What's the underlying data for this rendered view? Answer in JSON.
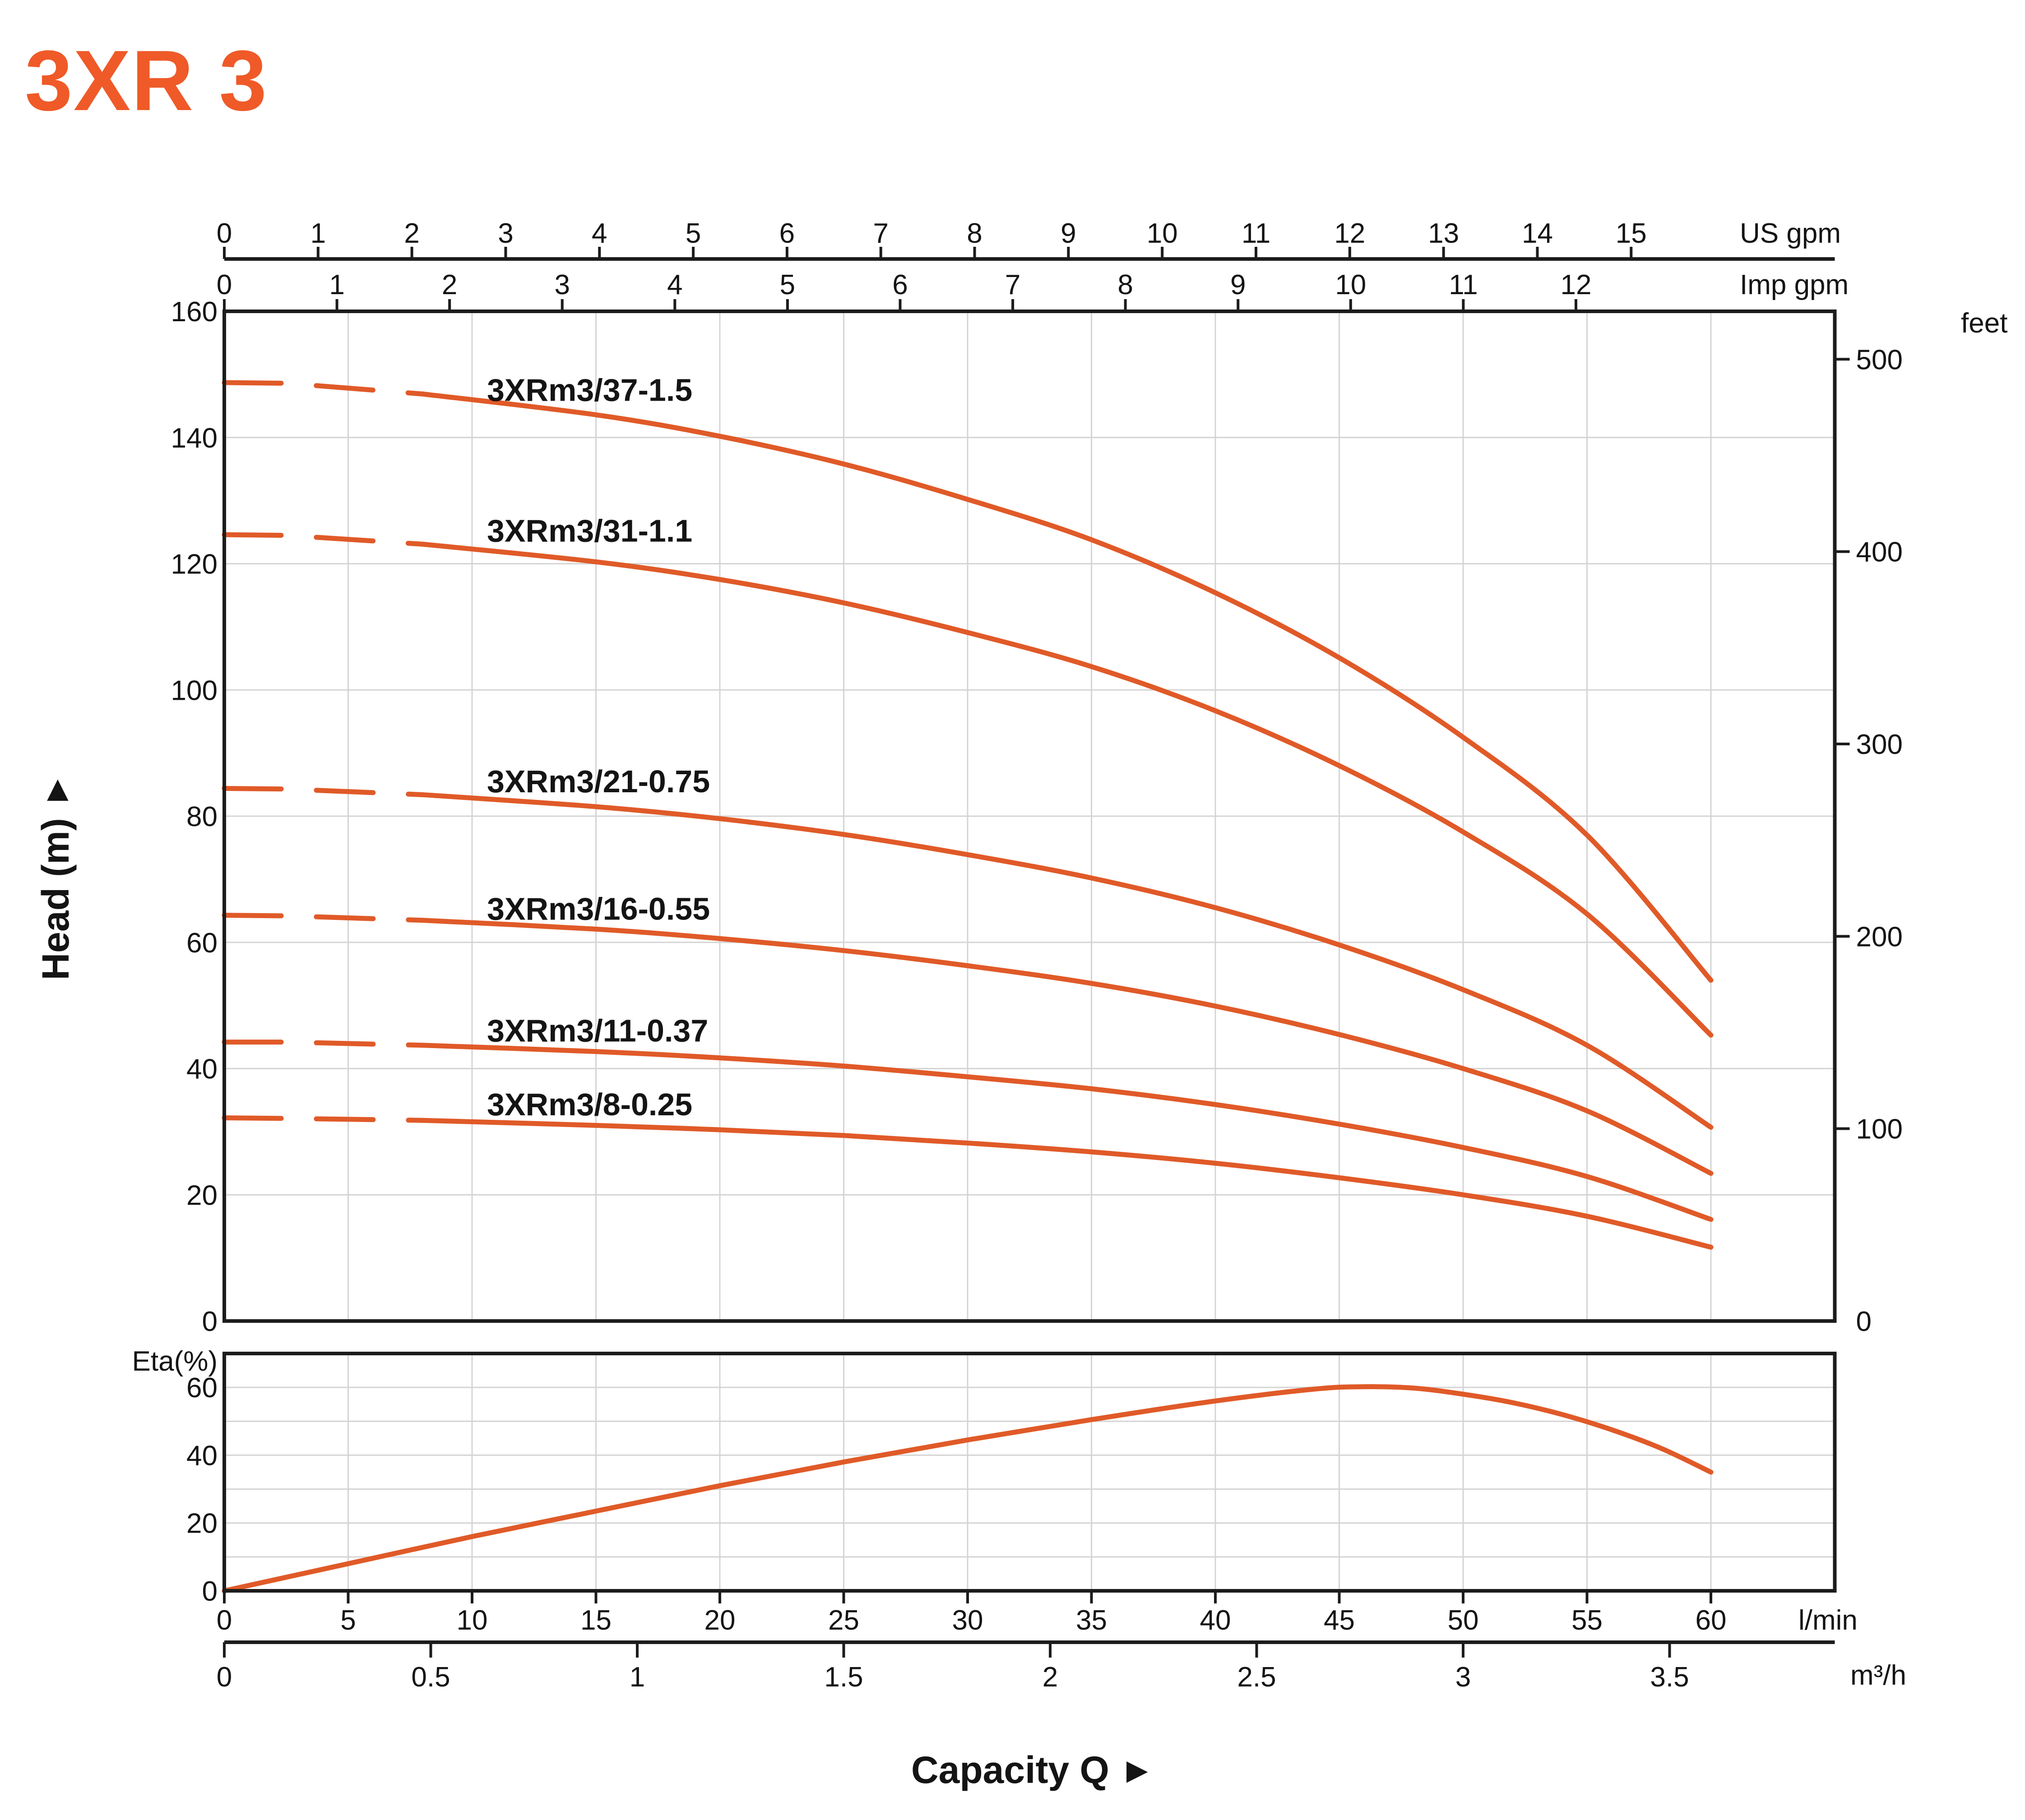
{
  "page": {
    "title": "3XR 3"
  },
  "colors": {
    "title_orange": "#ef5a28",
    "curve_orange": "#e05a28",
    "grid_gray": "#d4d4d4",
    "axis_black": "#1c1c1c",
    "text_black": "#141414"
  },
  "chart_data": {
    "type": "line",
    "title": "3XR 3",
    "xlabel": "Capacity Q",
    "arrow_glyph": "▶",
    "x_unit_rows": [
      {
        "id": "us_gpm",
        "label": "US gpm",
        "lmin_per_unit": 3.7854,
        "ticks": [
          0,
          1,
          2,
          3,
          4,
          5,
          6,
          7,
          8,
          9,
          10,
          11,
          12,
          13,
          14,
          15
        ]
      },
      {
        "id": "imp_gpm",
        "label": "Imp gpm",
        "lmin_per_unit": 4.5461,
        "ticks": [
          0,
          1,
          2,
          3,
          4,
          5,
          6,
          7,
          8,
          9,
          10,
          11,
          12
        ]
      },
      {
        "id": "lmin",
        "label": "l/min",
        "lmin_per_unit": 1,
        "ticks": [
          0,
          5,
          10,
          15,
          20,
          25,
          30,
          35,
          40,
          45,
          50,
          55,
          60
        ]
      },
      {
        "id": "m3h",
        "label": "m³/h",
        "lmin_per_unit": 16.6667,
        "ticks": [
          0,
          0.5,
          1,
          1.5,
          2,
          2.5,
          3,
          3.5
        ]
      }
    ],
    "head_axis": {
      "label": "Head (m)",
      "range": [
        0,
        160
      ],
      "gridline_step": 20,
      "ticks": [
        0,
        20,
        40,
        60,
        80,
        100,
        120,
        140,
        160
      ]
    },
    "feet_axis": {
      "label": "feet",
      "m_per_foot": 0.3048,
      "ticks": [
        0,
        100,
        200,
        300,
        400,
        500
      ]
    },
    "eta_axis": {
      "label": "Eta(%)",
      "range": [
        0,
        70
      ],
      "gridline_step": 10,
      "ticks": [
        0,
        20,
        40,
        60
      ]
    },
    "x_range_lmin": [
      0,
      65
    ],
    "x_gridline_step_lmin": 5,
    "dashed_below_lmin": 8,
    "q_lmin": [
      0,
      2.5,
      8,
      15,
      20,
      25,
      30,
      35,
      40,
      45,
      50,
      55,
      60
    ],
    "head_series": [
      {
        "name": "3XRm3/37-1.5",
        "label_pos": [
          10.6,
          145.8
        ],
        "heads_m": [
          148.7,
          148.6,
          146.9,
          143.6,
          140.2,
          135.8,
          130.2,
          123.8,
          115.4,
          105.1,
          92.5,
          77.0,
          54.0
        ]
      },
      {
        "name": "3XRm3/31-1.1",
        "label_pos": [
          10.6,
          123.5
        ],
        "heads_m": [
          124.6,
          124.5,
          123.1,
          120.3,
          117.5,
          113.8,
          109.1,
          103.7,
          96.7,
          88.0,
          77.5,
          64.5,
          45.3
        ]
      },
      {
        "name": "3XRm3/21-0.75",
        "label_pos": [
          10.6,
          83.8
        ],
        "heads_m": [
          84.4,
          84.3,
          83.4,
          81.5,
          79.6,
          77.1,
          73.9,
          70.2,
          65.5,
          59.6,
          52.5,
          43.7,
          30.7
        ]
      },
      {
        "name": "3XRm3/16-0.55",
        "label_pos": [
          10.6,
          63.6
        ],
        "heads_m": [
          64.3,
          64.2,
          63.5,
          62.1,
          60.6,
          58.7,
          56.3,
          53.5,
          49.9,
          45.4,
          40.0,
          33.3,
          23.4
        ]
      },
      {
        "name": "3XRm3/11-0.37",
        "label_pos": [
          10.6,
          44.3
        ],
        "heads_m": [
          44.2,
          44.2,
          43.7,
          42.7,
          41.7,
          40.4,
          38.7,
          36.8,
          34.3,
          31.2,
          27.5,
          22.9,
          16.1
        ]
      },
      {
        "name": "3XRm3/8-0.25",
        "label_pos": [
          10.6,
          32.6
        ],
        "heads_m": [
          32.2,
          32.1,
          31.8,
          31.0,
          30.3,
          29.4,
          28.2,
          26.8,
          25.0,
          22.7,
          20.0,
          16.6,
          11.7
        ]
      }
    ],
    "eta_series": {
      "name": "Eta",
      "points": [
        [
          0,
          0
        ],
        [
          5,
          8
        ],
        [
          10,
          16
        ],
        [
          15,
          23.5
        ],
        [
          20,
          31
        ],
        [
          25,
          38
        ],
        [
          30,
          44.5
        ],
        [
          35,
          50.5
        ],
        [
          40,
          56
        ],
        [
          44,
          59.5
        ],
        [
          46,
          60.2
        ],
        [
          48,
          59.8
        ],
        [
          50,
          58
        ],
        [
          52,
          55.5
        ],
        [
          54,
          52
        ],
        [
          56,
          47.5
        ],
        [
          58,
          42
        ],
        [
          60,
          35
        ]
      ]
    }
  }
}
